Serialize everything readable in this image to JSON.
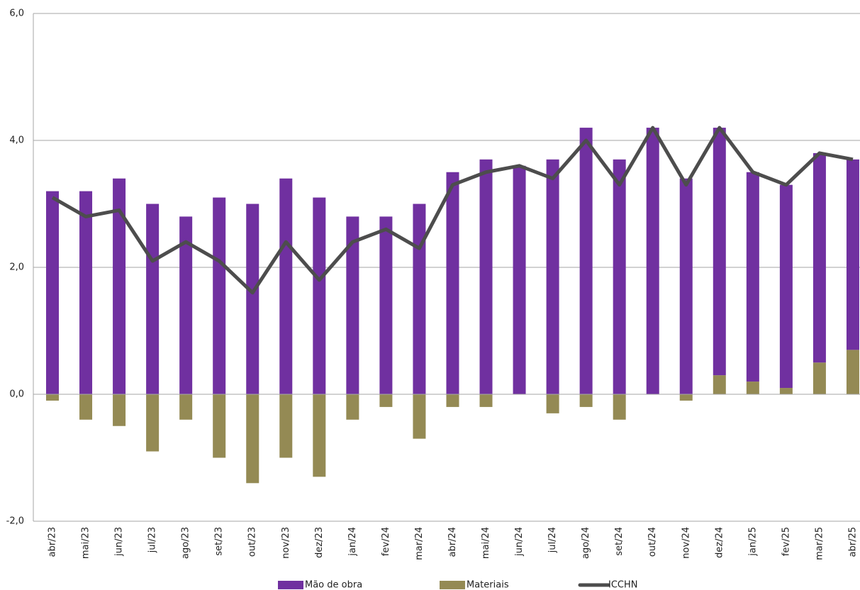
{
  "chart_data": {
    "type": "bar",
    "categories": [
      "abr/23",
      "mai/23",
      "jun/23",
      "jul/23",
      "ago/23",
      "set/23",
      "out/23",
      "nov/23",
      "dez/23",
      "jan/24",
      "fev/24",
      "mar/24",
      "abr/24",
      "mai/24",
      "jun/24",
      "jul/24",
      "ago/24",
      "set/24",
      "out/24",
      "nov/24",
      "dez/24",
      "jan/25",
      "fev/25",
      "mar/25",
      "abr/25"
    ],
    "series": [
      {
        "name": "Mão de obra",
        "type": "bar",
        "color": "#7030a0",
        "values": [
          3.2,
          3.2,
          3.4,
          3.0,
          2.8,
          3.1,
          3.0,
          3.4,
          3.1,
          2.8,
          2.8,
          3.0,
          3.5,
          3.7,
          3.6,
          3.7,
          4.2,
          3.7,
          4.2,
          3.4,
          3.9,
          3.3,
          3.2,
          3.3,
          3.0
        ]
      },
      {
        "name": "Materiais",
        "type": "bar",
        "color": "#948a54",
        "values": [
          -0.1,
          -0.4,
          -0.5,
          -0.9,
          -0.4,
          -1.0,
          -1.4,
          -1.0,
          -1.3,
          -0.4,
          -0.2,
          -0.7,
          -0.2,
          -0.2,
          0.0,
          -0.3,
          -0.2,
          -0.4,
          0.0,
          -0.1,
          0.3,
          0.2,
          0.1,
          0.5,
          0.7
        ]
      },
      {
        "name": "ICCHN",
        "type": "line",
        "color": "#4d4d4d",
        "values": [
          3.1,
          2.8,
          2.9,
          2.1,
          2.4,
          2.1,
          1.6,
          2.4,
          1.8,
          2.4,
          2.6,
          2.3,
          3.3,
          3.5,
          3.6,
          3.4,
          4.0,
          3.3,
          4.2,
          3.3,
          4.2,
          3.5,
          3.3,
          3.8,
          3.7
        ]
      }
    ],
    "ylim": [
      -2,
      6
    ],
    "yticks": [
      {
        "value": -2,
        "label": "-2,0"
      },
      {
        "value": 0,
        "label": "0,0"
      },
      {
        "value": 2,
        "label": "2,0"
      },
      {
        "value": 4,
        "label": "4,0"
      },
      {
        "value": 6,
        "label": "6,0"
      }
    ],
    "grid": true,
    "legend": "bottom"
  }
}
